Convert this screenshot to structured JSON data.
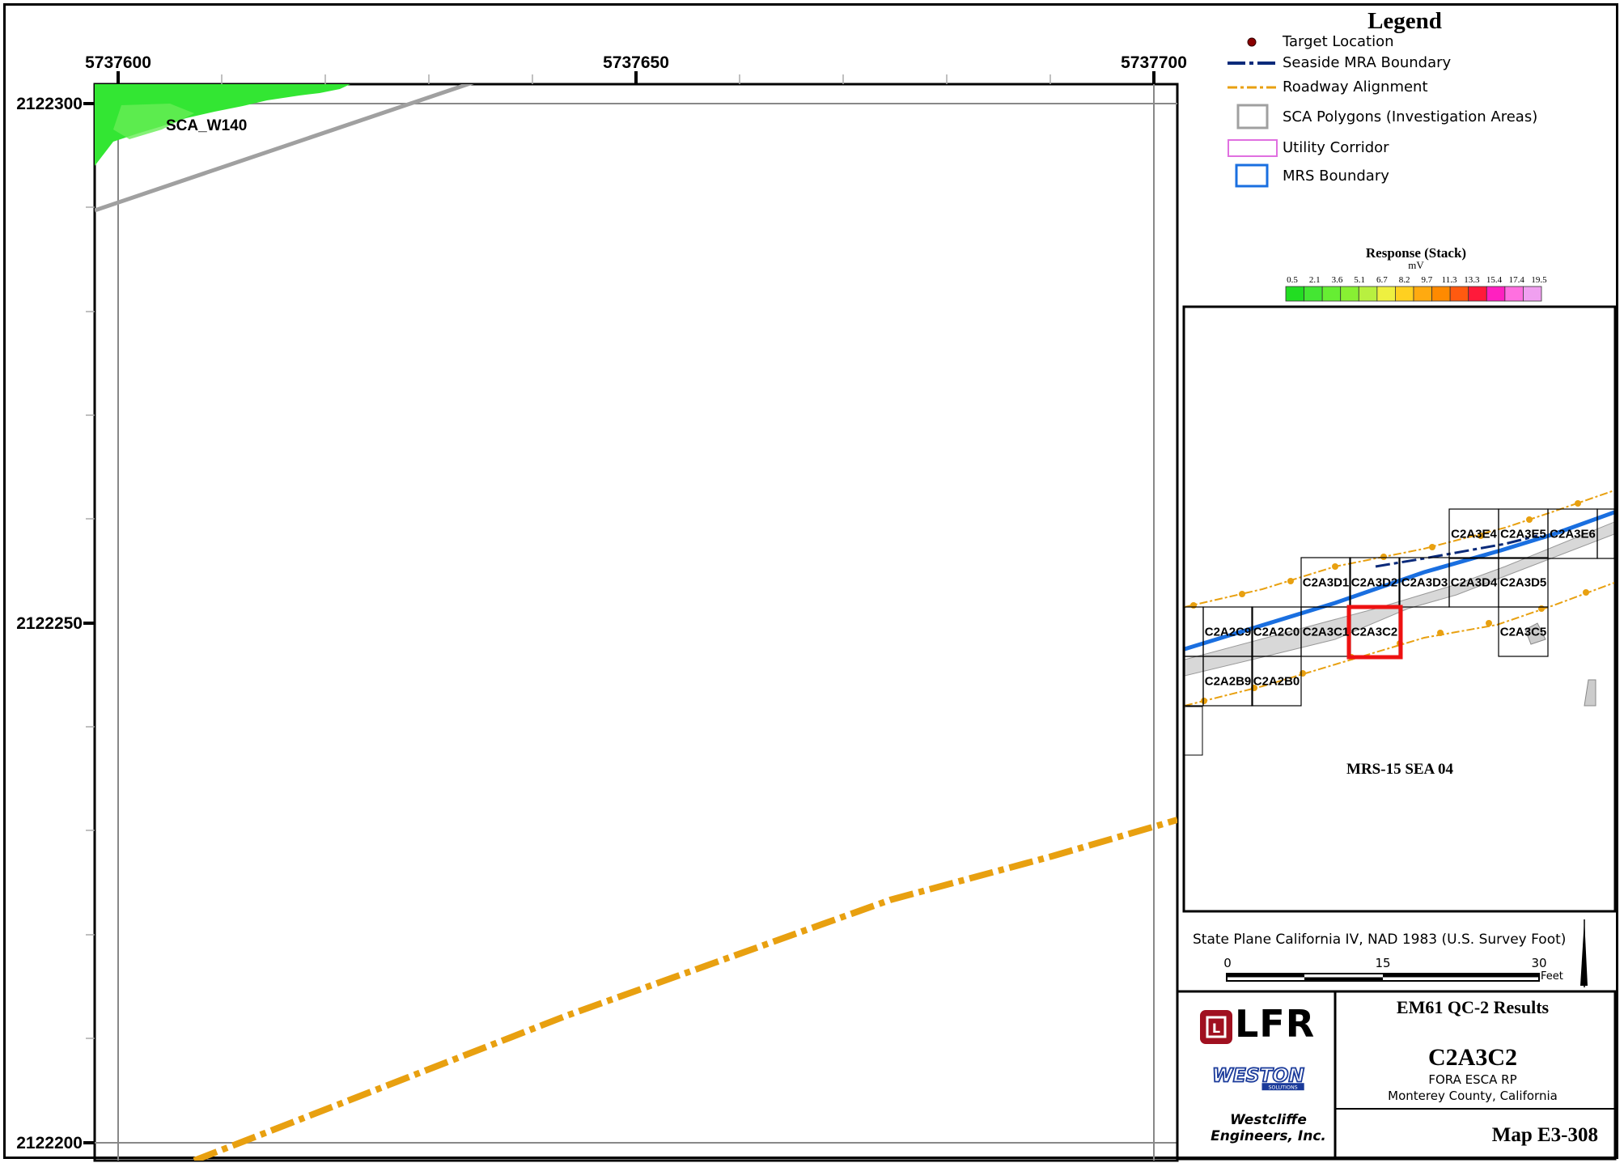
{
  "map": {
    "x_ticks": [
      "5737600",
      "5737650",
      "5737700"
    ],
    "y_ticks": [
      "2122300",
      "2122250",
      "2122200"
    ],
    "sca_label": "SCA_W140"
  },
  "legend": {
    "title": "Legend",
    "items": [
      {
        "label": "Target Location",
        "icon": "target-dot-icon"
      },
      {
        "label": "Seaside MRA Boundary",
        "icon": "dash-dot-blue-line-icon"
      },
      {
        "label": "Roadway Alignment",
        "icon": "dash-dot-orange-line-icon"
      },
      {
        "label": "SCA Polygons (Investigation Areas)",
        "icon": "gray-polygon-icon"
      },
      {
        "label": "Utility Corridor",
        "icon": "pink-polygon-icon"
      },
      {
        "label": "MRS Boundary",
        "icon": "blue-polygon-icon"
      }
    ]
  },
  "colorbar": {
    "title": "Response (Stack)",
    "unit": "mV",
    "ticks": [
      "0.5",
      "2.1",
      "3.6",
      "5.1",
      "6.7",
      "8.2",
      "9.7",
      "11.3",
      "13.3",
      "15.4",
      "17.4",
      "19.5"
    ],
    "colors": [
      "#22dd22",
      "#44e633",
      "#66ee33",
      "#88f033",
      "#b8f040",
      "#eef040",
      "#ffd020",
      "#ffaa10",
      "#ff8a00",
      "#ff5a10",
      "#ff1a3a",
      "#ff20c0",
      "#ff70e0",
      "#f0a0f0"
    ]
  },
  "inset": {
    "title": "MRS-15 SEA 04",
    "highlight_cell": "C2A3C2",
    "cells": [
      "C2A3E4",
      "C2A3E5",
      "C2A3E6",
      "C2A3D1",
      "C2A3D2",
      "C2A3D3",
      "C2A3D4",
      "C2A3D5",
      "C2A2C9",
      "C2A2C0",
      "C2A3C1",
      "C2A3C2",
      "C2A3C5",
      "C2A2B9",
      "C2A2B0"
    ]
  },
  "projection": "State Plane California IV, NAD 1983 (U.S. Survey Foot)",
  "scale": {
    "ticks": [
      "0",
      "15",
      "30"
    ],
    "unit": "Feet"
  },
  "title_block": {
    "heading": "EM61 QC-2 Results",
    "grid_id": "C2A3C2",
    "project": "FORA ESCA RP",
    "location": "Monterey County, California",
    "map_number": "Map E3-308",
    "logo1": "LFR",
    "logo2": "WESTON",
    "logo2_sub": "SOLUTIONS",
    "company": "Westcliffe Engineers, Inc."
  },
  "colors": {
    "roadway": "#e8a010",
    "sca_polygon": "#a0a0a0",
    "mrs_boundary": "#1a6fe0",
    "seaside_boundary": "#0a2a7a",
    "highlight": "#ee1111",
    "lfr_red": "#a01020",
    "weston_blue": "#1a3a9a"
  }
}
